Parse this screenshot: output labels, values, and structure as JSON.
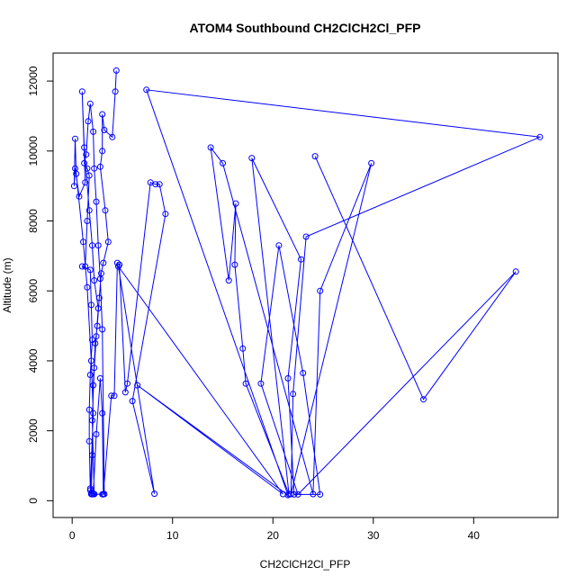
{
  "chart_data": {
    "type": "line",
    "title": "ATOM4 Southbound CH2ClCH2Cl_PFP",
    "xlabel": "CH2ClCH2Cl_PFP",
    "ylabel": "Altitude (m)",
    "xlim": [
      -1.9,
      48.4
    ],
    "ylim": [
      -480,
      12800
    ],
    "x_ticks": [
      0,
      10,
      20,
      30,
      40
    ],
    "y_ticks": [
      0,
      2000,
      4000,
      6000,
      8000,
      10000,
      12000
    ],
    "grid": false,
    "series": [
      {
        "color": "#0000ff",
        "marker": "open-circle",
        "points": [
          [
            4.4,
            12300
          ],
          [
            4.3,
            11700
          ],
          [
            4.0,
            10400
          ],
          [
            3.2,
            10600
          ],
          [
            3.0,
            11050
          ],
          [
            3.0,
            10000
          ],
          [
            2.8,
            9550
          ],
          [
            3.3,
            8300
          ],
          [
            3.6,
            7400
          ],
          [
            3.1,
            6800
          ],
          [
            2.9,
            6500
          ],
          [
            2.7,
            5800
          ],
          [
            2.5,
            5000
          ],
          [
            2.3,
            4500
          ],
          [
            2.1,
            3300
          ],
          [
            2.0,
            1300
          ],
          [
            1.9,
            200
          ],
          [
            2.2,
            190
          ],
          [
            3.0,
            185
          ],
          [
            3.2,
            190
          ],
          [
            3.0,
            4900
          ],
          [
            2.8,
            6350
          ],
          [
            2.6,
            7300
          ],
          [
            2.4,
            8550
          ],
          [
            2.2,
            9500
          ],
          [
            2.1,
            10550
          ],
          [
            1.8,
            11350
          ],
          [
            1.6,
            10850
          ],
          [
            1.4,
            9900
          ],
          [
            1.2,
            9650
          ],
          [
            1.5,
            9500
          ],
          [
            1.7,
            9300
          ],
          [
            1.5,
            8000
          ],
          [
            1.3,
            6700
          ],
          [
            1.0,
            6700
          ],
          [
            1.8,
            6600
          ],
          [
            1.9,
            5600
          ],
          [
            2.0,
            4600
          ],
          [
            1.8,
            3600
          ],
          [
            1.7,
            2600
          ],
          [
            1.7,
            1700
          ],
          [
            1.8,
            350
          ],
          [
            1.9,
            200
          ],
          [
            2.0,
            185
          ],
          [
            2.2,
            190
          ],
          [
            2.0,
            2300
          ],
          [
            2.2,
            3800
          ],
          [
            2.4,
            4700
          ],
          [
            2.6,
            5500
          ],
          [
            2.2,
            6300
          ],
          [
            2.0,
            7300
          ],
          [
            1.7,
            8300
          ],
          [
            1.2,
            10100
          ],
          [
            1.0,
            11700
          ],
          [
            1.3,
            9100
          ],
          [
            0.7,
            8700
          ],
          [
            0.3,
            9500
          ],
          [
            0.2,
            9000
          ],
          [
            0.3,
            10350
          ],
          [
            0.4,
            9350
          ],
          [
            1.1,
            7400
          ],
          [
            1.5,
            6100
          ],
          [
            1.9,
            4000
          ],
          [
            2.1,
            2500
          ],
          [
            1.8,
            300
          ],
          [
            1.9,
            190
          ],
          [
            2.1,
            200
          ],
          [
            2.4,
            1900
          ],
          [
            2.8,
            3500
          ],
          [
            3.0,
            2500
          ],
          [
            3.1,
            185
          ],
          [
            3.9,
            3000
          ],
          [
            4.2,
            3000
          ],
          [
            4.5,
            6800
          ],
          [
            4.7,
            6750
          ],
          [
            5.3,
            3100
          ],
          [
            5.5,
            3350
          ],
          [
            7.8,
            9100
          ],
          [
            8.3,
            9050
          ],
          [
            8.7,
            9050
          ],
          [
            9.3,
            8200
          ],
          [
            6.0,
            2850
          ],
          [
            8.2,
            200
          ],
          [
            4.6,
            6700
          ],
          [
            21.0,
            190
          ],
          [
            6.5,
            3300
          ],
          [
            21.5,
            160
          ],
          [
            7.4,
            11750
          ],
          [
            46.6,
            10400
          ],
          [
            23.3,
            7550
          ],
          [
            22.0,
            3050
          ],
          [
            21.8,
            190
          ],
          [
            29.8,
            9650
          ],
          [
            24.7,
            6000
          ],
          [
            24.0,
            190
          ],
          [
            15.0,
            9650
          ],
          [
            13.8,
            10100
          ],
          [
            15.6,
            6300
          ],
          [
            16.3,
            8500
          ],
          [
            16.2,
            6750
          ],
          [
            17.0,
            4350
          ],
          [
            17.3,
            3350
          ],
          [
            21.6,
            190
          ],
          [
            17.9,
            9800
          ],
          [
            22.8,
            6900
          ],
          [
            21.5,
            3500
          ],
          [
            22.1,
            180
          ],
          [
            24.7,
            180
          ],
          [
            23.0,
            3650
          ],
          [
            20.6,
            7300
          ],
          [
            18.8,
            3350
          ],
          [
            22.5,
            180
          ],
          [
            44.2,
            6550
          ],
          [
            35.0,
            2900
          ],
          [
            24.2,
            9850
          ]
        ]
      }
    ]
  }
}
